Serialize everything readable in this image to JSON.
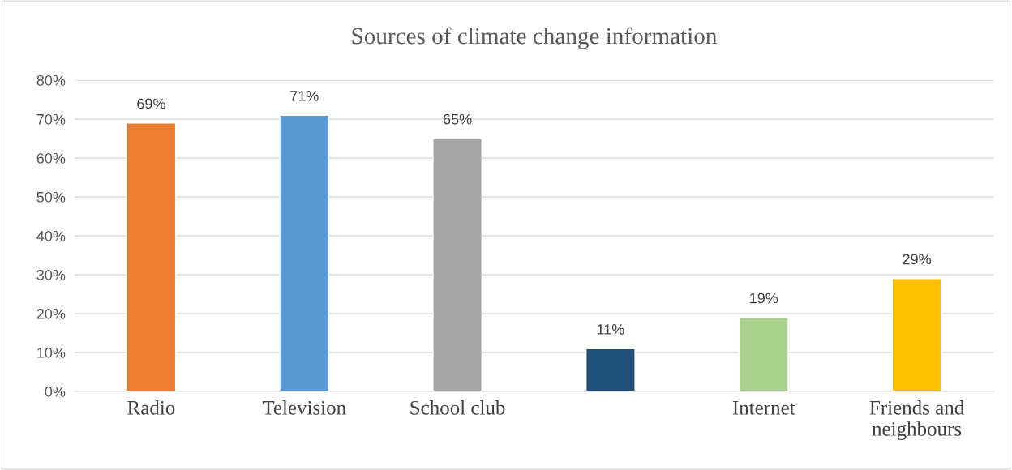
{
  "chart_data": {
    "type": "bar",
    "title": "Sources of climate change information",
    "categories": [
      "Radio",
      "Television",
      "School club",
      null,
      "Internet",
      "Friends and neighbours"
    ],
    "values": [
      69,
      71,
      65,
      11,
      19,
      29
    ],
    "colors": [
      "#ed7d31",
      "#5b9bd5",
      "#a5a5a5",
      "#1f4e79",
      "#a9d18e",
      "#ffc000"
    ],
    "value_labels": [
      "69%",
      "71%",
      "65%",
      "11%",
      "19%",
      "29%"
    ],
    "ylim": [
      0,
      80
    ],
    "yticks": [
      {
        "value": 0,
        "label": "0%"
      },
      {
        "value": 10,
        "label": "10%"
      },
      {
        "value": 20,
        "label": "20%"
      },
      {
        "value": 30,
        "label": "30%"
      },
      {
        "value": 40,
        "label": "40%"
      },
      {
        "value": 50,
        "label": "50%"
      },
      {
        "value": 60,
        "label": "60%"
      },
      {
        "value": 70,
        "label": "70%"
      },
      {
        "value": 80,
        "label": "80%"
      }
    ],
    "grid": "y"
  }
}
